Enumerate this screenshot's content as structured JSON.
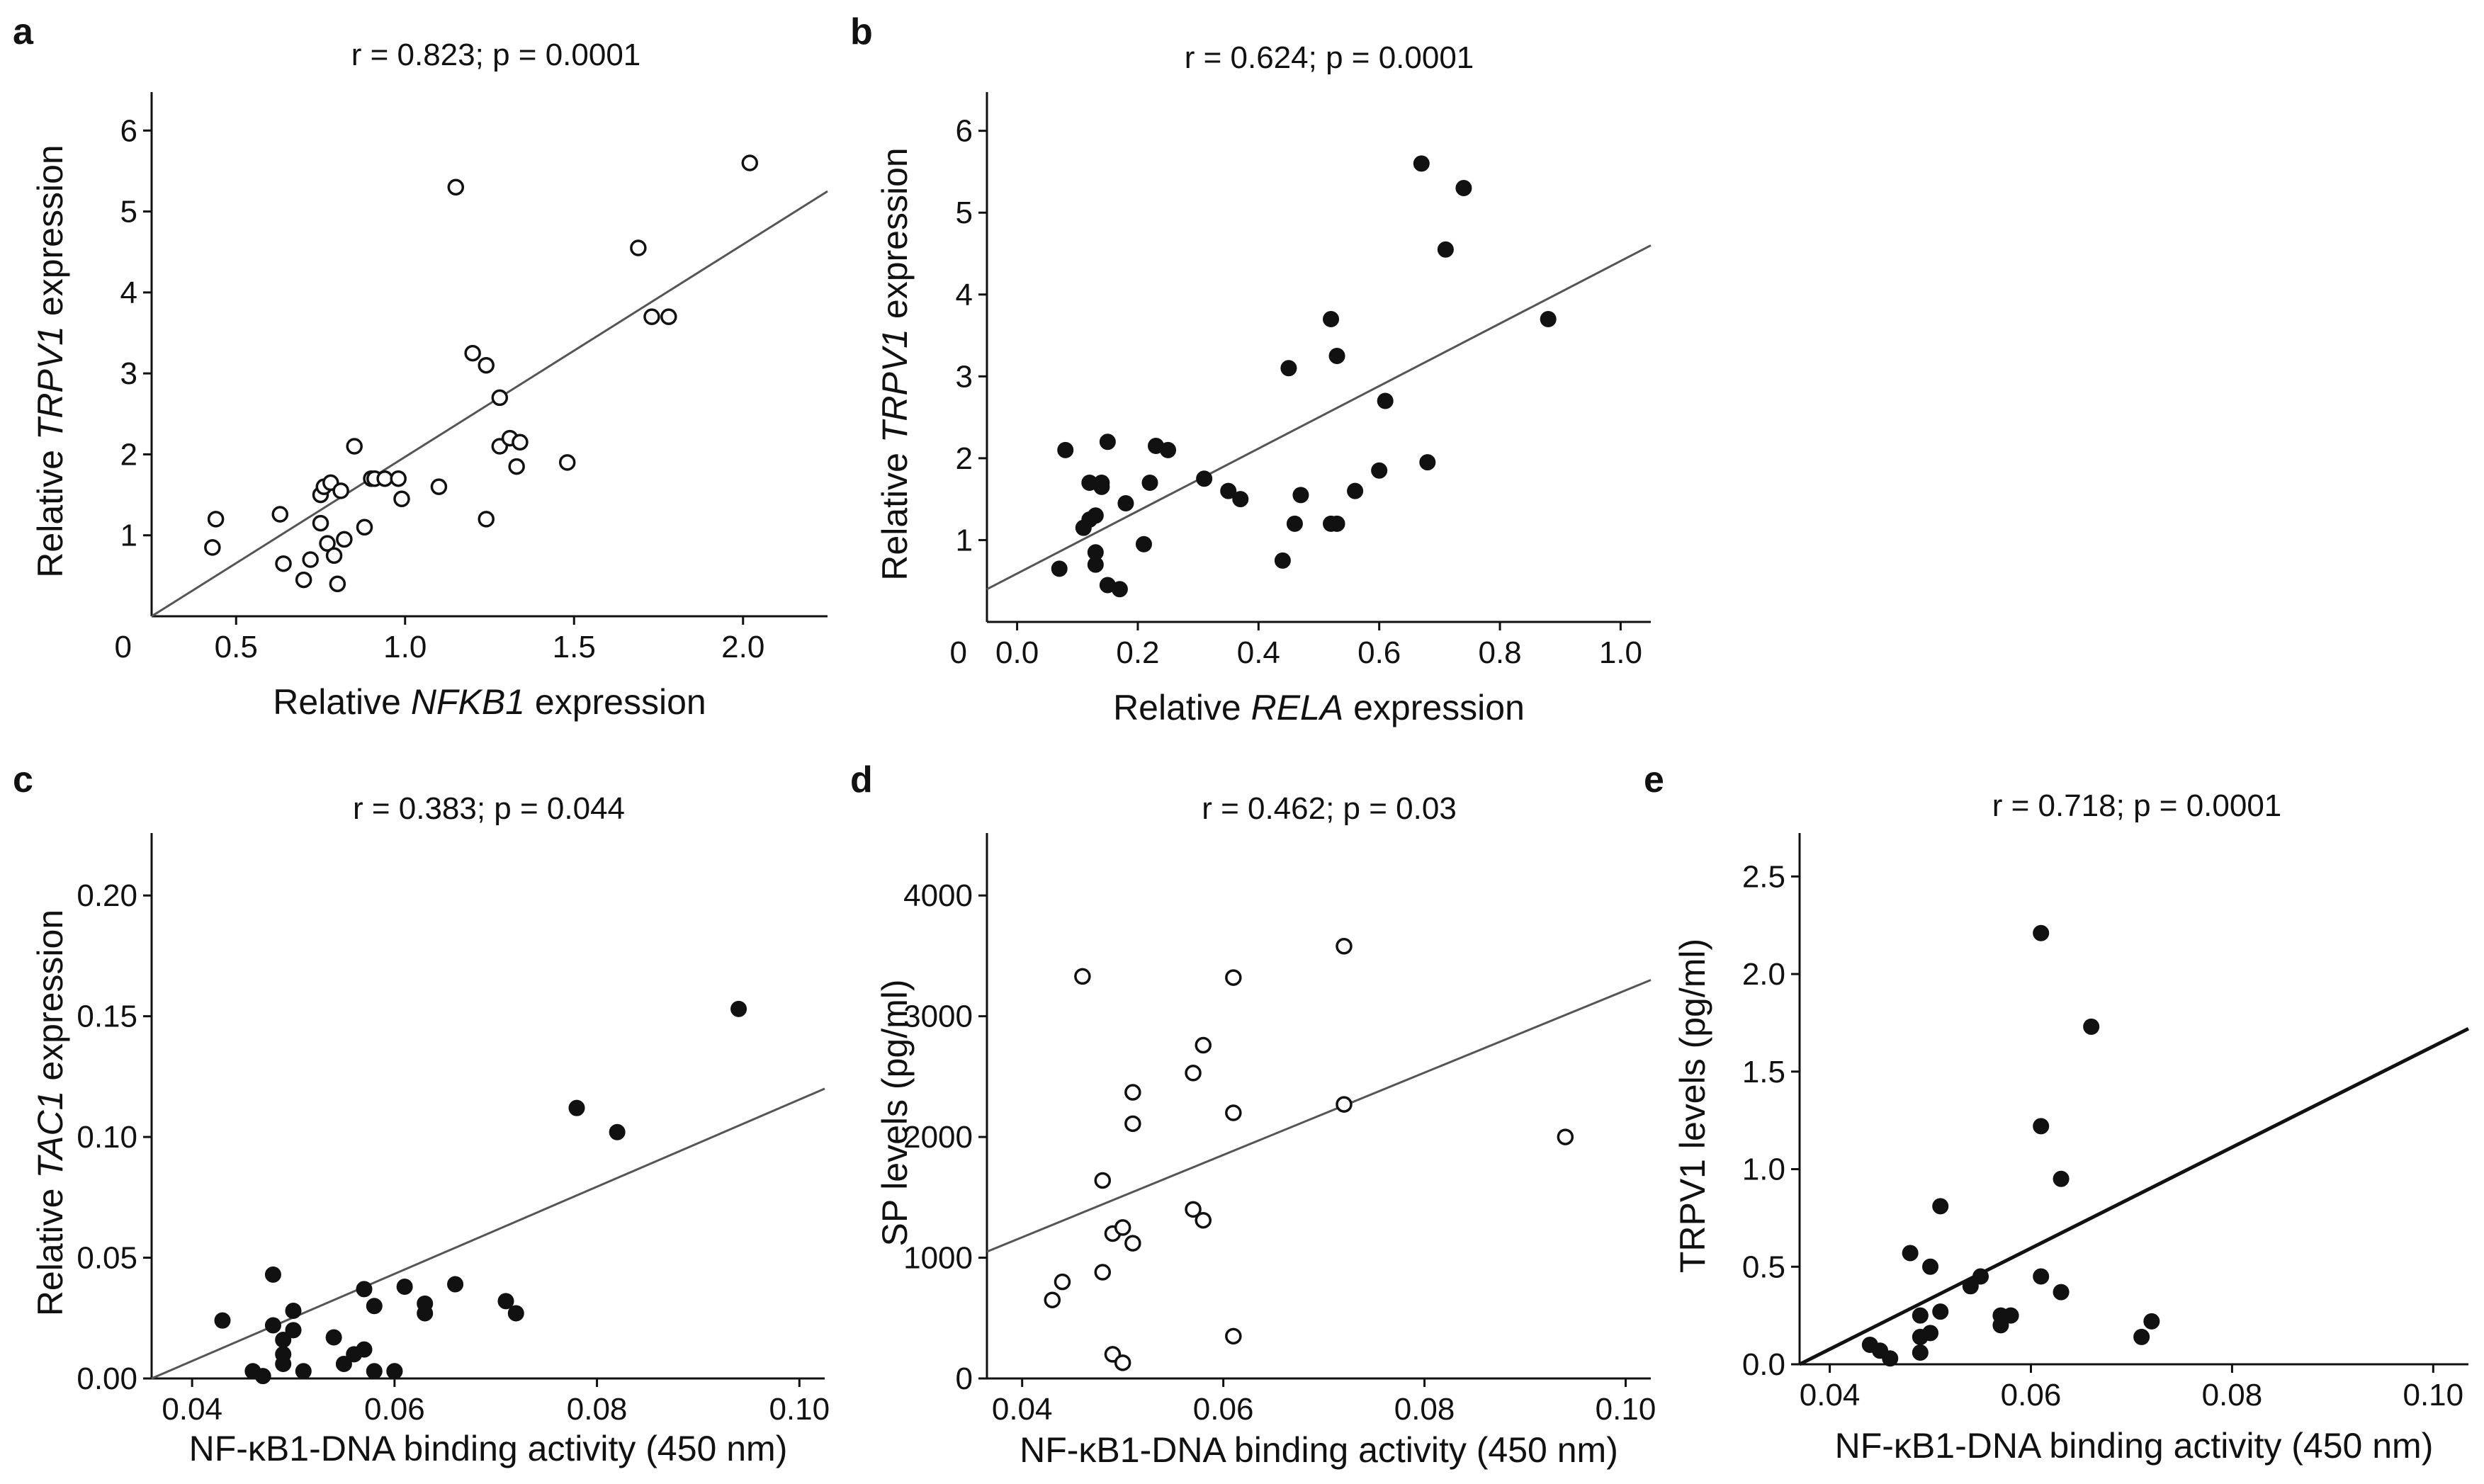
{
  "chart_data": [
    {
      "panel": "a",
      "type": "scatter",
      "title": "r = 0.823; p = 0.0001",
      "xlabel_parts": [
        {
          "text": "Relative ",
          "italic": false
        },
        {
          "text": "NFKB1",
          "italic": true
        },
        {
          "text": " expression",
          "italic": false
        }
      ],
      "ylabel_parts": [
        {
          "text": "Relative ",
          "italic": false
        },
        {
          "text": "TRPV1",
          "italic": true
        },
        {
          "text": " expression",
          "italic": false
        }
      ],
      "xlim": [
        0.25,
        2.25
      ],
      "ylim": [
        0,
        6.3
      ],
      "xticks": [
        0.5,
        1.0,
        1.5,
        2.0
      ],
      "xtick_labels": [
        "0.5",
        "1.0",
        "1.5",
        "2.0"
      ],
      "yticks": [
        1,
        2,
        3,
        4,
        5,
        6
      ],
      "ytick_labels": [
        "1",
        "2",
        "3",
        "4",
        "5",
        "6"
      ],
      "origin_label": "0",
      "marker": "open",
      "fit": {
        "x": [
          0.25,
          2.25
        ],
        "y": [
          0.0,
          5.25
        ]
      },
      "series": [
        {
          "x": [
            0.43,
            0.44,
            0.63,
            0.64,
            0.7,
            0.72,
            0.75,
            0.75,
            0.76,
            0.77,
            0.78,
            0.79,
            0.8,
            0.81,
            0.82,
            0.85,
            0.88,
            0.9,
            0.91,
            0.94,
            0.98,
            0.99,
            1.1,
            1.15,
            1.2,
            1.24,
            1.24,
            1.28,
            1.28,
            1.31,
            1.33,
            1.34,
            1.48,
            1.69,
            1.73,
            1.78,
            2.02
          ],
          "y": [
            0.85,
            1.2,
            1.26,
            0.65,
            0.45,
            0.7,
            1.15,
            1.5,
            1.6,
            0.9,
            1.65,
            0.75,
            0.4,
            1.55,
            0.95,
            2.1,
            1.1,
            1.7,
            1.7,
            1.7,
            1.7,
            1.45,
            1.6,
            5.3,
            3.25,
            3.1,
            1.2,
            2.7,
            2.1,
            2.2,
            1.85,
            2.15,
            1.9,
            4.55,
            3.7,
            3.7,
            5.6
          ]
        }
      ]
    },
    {
      "panel": "b",
      "type": "scatter",
      "title": "r = 0.624; p = 0.0001",
      "xlabel_parts": [
        {
          "text": "Relative ",
          "italic": false
        },
        {
          "text": "RELA",
          "italic": true
        },
        {
          "text": " expression",
          "italic": false
        }
      ],
      "ylabel_parts": [
        {
          "text": "Relative ",
          "italic": false
        },
        {
          "text": "TRPV1",
          "italic": true
        },
        {
          "text": " expression",
          "italic": false
        }
      ],
      "xlim": [
        -0.05,
        1.05
      ],
      "ylim": [
        0,
        6.3
      ],
      "xticks": [
        0.0,
        0.2,
        0.4,
        0.6,
        0.8,
        1.0
      ],
      "xtick_labels": [
        "0.0",
        "0.2",
        "0.4",
        "0.6",
        "0.8",
        "1.0"
      ],
      "yticks": [
        1,
        2,
        3,
        4,
        5,
        6
      ],
      "ytick_labels": [
        "1",
        "2",
        "3",
        "4",
        "5",
        "6"
      ],
      "origin_label": "0",
      "marker": "filled",
      "fit": {
        "x": [
          -0.05,
          1.05
        ],
        "y": [
          0.4,
          4.6
        ]
      },
      "series": [
        {
          "x": [
            0.07,
            0.08,
            0.11,
            0.12,
            0.12,
            0.13,
            0.13,
            0.13,
            0.14,
            0.14,
            0.15,
            0.15,
            0.17,
            0.18,
            0.21,
            0.22,
            0.23,
            0.25,
            0.31,
            0.35,
            0.37,
            0.44,
            0.45,
            0.46,
            0.47,
            0.52,
            0.52,
            0.53,
            0.53,
            0.56,
            0.6,
            0.61,
            0.67,
            0.68,
            0.71,
            0.74,
            0.88
          ],
          "y": [
            0.65,
            2.1,
            1.15,
            1.25,
            1.7,
            0.85,
            0.7,
            1.3,
            1.65,
            1.7,
            0.45,
            2.2,
            0.4,
            1.45,
            0.95,
            1.7,
            2.15,
            2.1,
            1.75,
            1.6,
            1.5,
            0.75,
            3.1,
            1.2,
            1.55,
            3.7,
            1.2,
            3.25,
            1.2,
            1.6,
            1.85,
            2.7,
            5.6,
            1.95,
            4.55,
            5.3,
            3.7
          ]
        }
      ]
    },
    {
      "panel": "c",
      "type": "scatter",
      "title": "r = 0.383; p = 0.044",
      "xlabel_parts": [
        {
          "text": "NF-κB1-DNA binding activity (450 nm)",
          "italic": false
        }
      ],
      "ylabel_parts": [
        {
          "text": "Relative ",
          "italic": false
        },
        {
          "text": "TAC1",
          "italic": true
        },
        {
          "text": " expression",
          "italic": false
        }
      ],
      "xlim": [
        0.036,
        0.1025
      ],
      "ylim": [
        0,
        0.22
      ],
      "xticks": [
        0.04,
        0.06,
        0.08,
        0.1
      ],
      "xtick_labels": [
        "0.04",
        "0.06",
        "0.08",
        "0.10"
      ],
      "yticks": [
        0.0,
        0.05,
        0.1,
        0.15,
        0.2
      ],
      "ytick_labels": [
        "0.00",
        "0.05",
        "0.10",
        "0.15",
        "0.20"
      ],
      "origin_label": "",
      "marker": "filled",
      "fit": {
        "x": [
          0.036,
          0.1025
        ],
        "y": [
          0.0,
          0.12
        ]
      },
      "series": [
        {
          "x": [
            0.043,
            0.046,
            0.047,
            0.048,
            0.048,
            0.049,
            0.049,
            0.049,
            0.05,
            0.05,
            0.051,
            0.054,
            0.055,
            0.056,
            0.057,
            0.057,
            0.058,
            0.058,
            0.06,
            0.06,
            0.061,
            0.063,
            0.063,
            0.066,
            0.071,
            0.072,
            0.078,
            0.082,
            0.094
          ],
          "y": [
            0.024,
            0.003,
            0.001,
            0.043,
            0.022,
            0.016,
            0.01,
            0.006,
            0.028,
            0.02,
            0.003,
            0.017,
            0.006,
            0.01,
            0.037,
            0.012,
            0.03,
            0.003,
            0.003,
            0.003,
            0.038,
            0.031,
            0.027,
            0.039,
            0.032,
            0.027,
            0.112,
            0.102,
            0.153
          ]
        }
      ]
    },
    {
      "panel": "d",
      "type": "scatter",
      "title": "r = 0.462; p = 0.03",
      "xlabel_parts": [
        {
          "text": "NF-κB1-DNA binding activity (450 nm)",
          "italic": false
        }
      ],
      "ylabel_parts": [
        {
          "text": "SP levels  (pg/ml)",
          "italic": false
        }
      ],
      "xlim": [
        0.0365,
        0.1025
      ],
      "ylim": [
        0,
        4400
      ],
      "xticks": [
        0.04,
        0.06,
        0.08,
        0.1
      ],
      "xtick_labels": [
        "0.04",
        "0.06",
        "0.08",
        "0.10"
      ],
      "yticks": [
        0,
        1000,
        2000,
        3000,
        4000
      ],
      "ytick_labels": [
        "0",
        "1000",
        "2000",
        "3000",
        "4000"
      ],
      "origin_label": "",
      "marker": "open",
      "fit": {
        "x": [
          0.0365,
          0.1025
        ],
        "y": [
          1050,
          3300
        ]
      },
      "series": [
        {
          "x": [
            0.043,
            0.044,
            0.046,
            0.048,
            0.048,
            0.049,
            0.049,
            0.05,
            0.05,
            0.051,
            0.051,
            0.051,
            0.057,
            0.057,
            0.058,
            0.058,
            0.061,
            0.061,
            0.061,
            0.072,
            0.072,
            0.094
          ],
          "y": [
            650,
            800,
            3330,
            880,
            1640,
            200,
            1200,
            1250,
            130,
            1120,
            2370,
            2110,
            2530,
            1400,
            2760,
            1310,
            2200,
            3320,
            350,
            2270,
            3580,
            2000
          ]
        }
      ]
    },
    {
      "panel": "e",
      "type": "scatter",
      "title": "r = 0.718; p = 0.0001",
      "xlabel_parts": [
        {
          "text": "NF-κB1-DNA binding activity (450 nm)",
          "italic": false
        }
      ],
      "ylabel_parts": [
        {
          "text": "TRPV1 levels  (pg/ml)",
          "italic": false
        }
      ],
      "xlim": [
        0.037,
        0.1035
      ],
      "ylim": [
        0,
        2.65
      ],
      "xticks": [
        0.04,
        0.06,
        0.08,
        0.1
      ],
      "xtick_labels": [
        "0.04",
        "0.06",
        "0.08",
        "0.10"
      ],
      "yticks": [
        0.0,
        0.5,
        1.0,
        1.5,
        2.0,
        2.5
      ],
      "ytick_labels": [
        "0.0",
        "0.5",
        "1.0",
        "1.5",
        "2.0",
        "2.5"
      ],
      "origin_label": "",
      "marker": "filled",
      "fit": {
        "x": [
          0.037,
          0.1035
        ],
        "y": [
          0.0,
          1.72
        ]
      },
      "series": [
        {
          "x": [
            0.044,
            0.045,
            0.046,
            0.048,
            0.049,
            0.049,
            0.049,
            0.05,
            0.05,
            0.051,
            0.051,
            0.054,
            0.055,
            0.057,
            0.057,
            0.058,
            0.061,
            0.061,
            0.061,
            0.063,
            0.063,
            0.066,
            0.071,
            0.072
          ],
          "y": [
            0.1,
            0.07,
            0.03,
            0.57,
            0.25,
            0.14,
            0.06,
            0.5,
            0.16,
            0.81,
            0.27,
            0.4,
            0.45,
            0.25,
            0.2,
            0.25,
            2.21,
            1.22,
            0.45,
            0.95,
            0.37,
            1.73,
            0.14,
            0.22
          ]
        }
      ]
    }
  ]
}
